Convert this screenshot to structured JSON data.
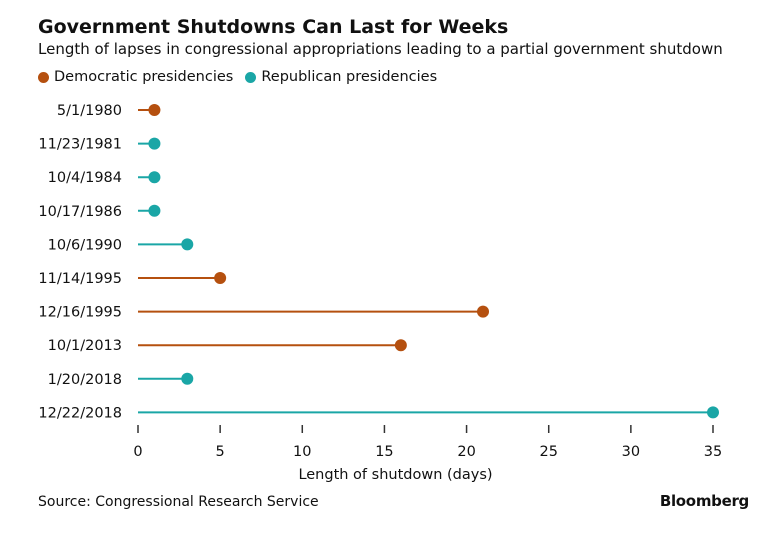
{
  "title": "Government Shutdowns Can Last for Weeks",
  "subtitle": "Length of lapses in congressional appropriations leading to a partial government shutdown",
  "source": "Source: Congressional Research Service",
  "brand": "Bloomberg",
  "colors": {
    "Democratic": "#b5500f",
    "Republican": "#1aa6a6",
    "axis": "#333333"
  },
  "chart_data": {
    "type": "lollipop",
    "title": "Government Shutdowns Can Last for Weeks",
    "xlabel": "Length of shutdown (days)",
    "ylabel": "",
    "xlim": [
      0,
      35
    ],
    "xticks": [
      0,
      5,
      10,
      15,
      20,
      25,
      30,
      35
    ],
    "legend": [
      {
        "label": "Democratic presidencies",
        "party": "Democratic"
      },
      {
        "label": "Republican presidencies",
        "party": "Republican"
      }
    ],
    "points": [
      {
        "date": "5/1/1980",
        "days": 1,
        "party": "Democratic"
      },
      {
        "date": "11/23/1981",
        "days": 1,
        "party": "Republican"
      },
      {
        "date": "10/4/1984",
        "days": 1,
        "party": "Republican"
      },
      {
        "date": "10/17/1986",
        "days": 1,
        "party": "Republican"
      },
      {
        "date": "10/6/1990",
        "days": 3,
        "party": "Republican"
      },
      {
        "date": "11/14/1995",
        "days": 5,
        "party": "Democratic"
      },
      {
        "date": "12/16/1995",
        "days": 21,
        "party": "Democratic"
      },
      {
        "date": "10/1/2013",
        "days": 16,
        "party": "Democratic"
      },
      {
        "date": "1/20/2018",
        "days": 3,
        "party": "Republican"
      },
      {
        "date": "12/22/2018",
        "days": 35,
        "party": "Republican"
      }
    ]
  }
}
